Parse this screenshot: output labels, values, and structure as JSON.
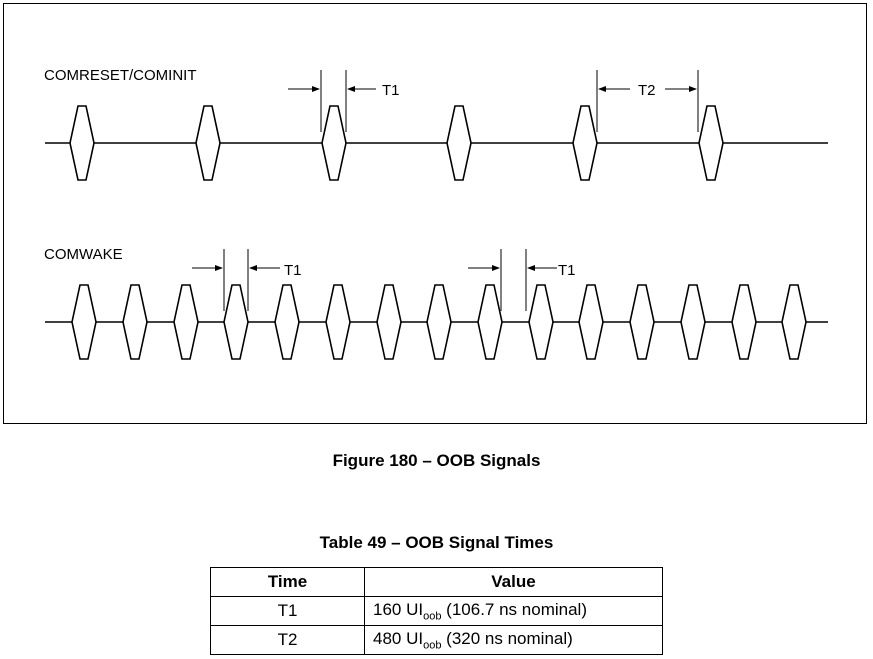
{
  "diagram": {
    "signals": [
      {
        "label": "COMRESET/COMINIT"
      },
      {
        "label": "COMWAKE"
      }
    ],
    "timing_labels": {
      "t1": "T1",
      "t2": "T2"
    }
  },
  "figure_caption": "Figure 180 – OOB Signals",
  "table": {
    "caption": "Table 49 – OOB Signal Times",
    "headers": {
      "time": "Time",
      "value": "Value"
    },
    "rows": [
      {
        "time": "T1",
        "value_prefix": "160 UI",
        "value_sub": "oob",
        "value_suffix": " (106.7 ns nominal)"
      },
      {
        "time": "T2",
        "value_prefix": "480 UI",
        "value_sub": "oob",
        "value_suffix": " (320 ns nominal)"
      }
    ]
  }
}
